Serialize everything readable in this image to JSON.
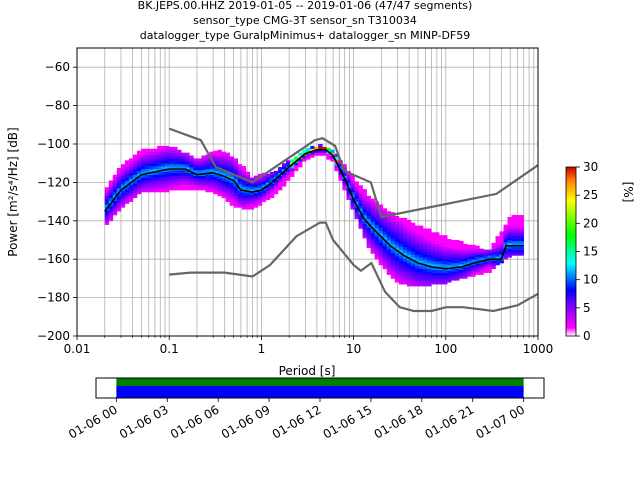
{
  "title_lines": [
    "BK.JEPS.00.HHZ   2019-01-05 -- 2019-01-06  (47/47 segments)",
    "sensor_type CMG-3T sensor_sn T310034",
    "datalogger_type GuralpMinimus+ datalogger_sn MINP-DF59"
  ],
  "chart_data": {
    "type": "heatmap",
    "xlabel": "Period [s]",
    "ylabel": "Power [m²/s⁴/Hz] [dB]",
    "xscale": "log",
    "xlim": [
      0.01,
      1000
    ],
    "ylim": [
      -200,
      -50
    ],
    "x_tick_labels": [
      "0.01",
      "0.1",
      "1",
      "10",
      "100",
      "1000"
    ],
    "x_tick_values": [
      0.01,
      0.1,
      1,
      10,
      100,
      1000
    ],
    "y_ticks": [
      -200,
      -180,
      -160,
      -140,
      -120,
      -100,
      -80,
      -60
    ],
    "grid": true,
    "colorbar": {
      "label": "[%]",
      "range": [
        0,
        30
      ],
      "ticks": [
        0,
        5,
        10,
        15,
        20,
        25,
        30
      ]
    },
    "noise_models": {
      "high": [
        [
          0.1,
          -92
        ],
        [
          0.22,
          -98
        ],
        [
          0.32,
          -112
        ],
        [
          0.8,
          -120
        ],
        [
          3.8,
          -98
        ],
        [
          4.6,
          -97
        ],
        [
          6.3,
          -101
        ],
        [
          7.9,
          -114
        ],
        [
          15.4,
          -120
        ],
        [
          20,
          -138
        ],
        [
          354,
          -126
        ],
        [
          1000,
          -111
        ]
      ],
      "low": [
        [
          0.1,
          -168
        ],
        [
          0.17,
          -167
        ],
        [
          0.4,
          -167
        ],
        [
          0.8,
          -169
        ],
        [
          1.24,
          -163
        ],
        [
          2.4,
          -148
        ],
        [
          4.3,
          -141
        ],
        [
          5.0,
          -141
        ],
        [
          6.0,
          -150
        ],
        [
          10,
          -163
        ],
        [
          12,
          -166
        ],
        [
          15.6,
          -162
        ],
        [
          21.9,
          -177
        ],
        [
          31.6,
          -185
        ],
        [
          45,
          -187
        ],
        [
          70,
          -187
        ],
        [
          101,
          -185
        ],
        [
          154,
          -185
        ],
        [
          328,
          -187
        ],
        [
          600,
          -184
        ],
        [
          1000,
          -178
        ]
      ]
    },
    "median_curve": [
      [
        0.02,
        -135
      ],
      [
        0.03,
        -124
      ],
      [
        0.05,
        -116
      ],
      [
        0.1,
        -113
      ],
      [
        0.15,
        -113
      ],
      [
        0.2,
        -116
      ],
      [
        0.3,
        -115
      ],
      [
        0.4,
        -117
      ],
      [
        0.5,
        -119
      ],
      [
        0.6,
        -124
      ],
      [
        0.8,
        -125
      ],
      [
        1.0,
        -124
      ],
      [
        1.3,
        -120
      ],
      [
        2.0,
        -112
      ],
      [
        3.0,
        -105
      ],
      [
        4.0,
        -103
      ],
      [
        5.0,
        -103
      ],
      [
        6.0,
        -106
      ],
      [
        8.0,
        -118
      ],
      [
        10,
        -129
      ],
      [
        13,
        -139
      ],
      [
        17,
        -145
      ],
      [
        25,
        -153
      ],
      [
        35,
        -158
      ],
      [
        50,
        -162
      ],
      [
        70,
        -164
      ],
      [
        100,
        -165
      ],
      [
        150,
        -164
      ],
      [
        200,
        -162
      ],
      [
        300,
        -160
      ],
      [
        400,
        -160
      ],
      [
        450,
        -153
      ],
      [
        700,
        -153
      ]
    ],
    "density_envelope": {
      "upper": [
        [
          0.02,
          -125
        ],
        [
          0.03,
          -112
        ],
        [
          0.05,
          -104
        ],
        [
          0.1,
          -101
        ],
        [
          0.2,
          -108
        ],
        [
          0.35,
          -104
        ],
        [
          0.5,
          -107
        ],
        [
          0.8,
          -118
        ],
        [
          1.5,
          -114
        ],
        [
          3,
          -103
        ],
        [
          4.5,
          -101
        ],
        [
          6,
          -104
        ],
        [
          10,
          -118
        ],
        [
          15,
          -128
        ],
        [
          20,
          -133
        ],
        [
          30,
          -138
        ],
        [
          50,
          -143
        ],
        [
          100,
          -149
        ],
        [
          200,
          -154
        ],
        [
          300,
          -156
        ],
        [
          500,
          -138
        ],
        [
          700,
          -138
        ]
      ],
      "lower": [
        [
          0.02,
          -143
        ],
        [
          0.03,
          -133
        ],
        [
          0.05,
          -125
        ],
        [
          0.1,
          -124
        ],
        [
          0.2,
          -123
        ],
        [
          0.35,
          -126
        ],
        [
          0.5,
          -132
        ],
        [
          0.8,
          -134
        ],
        [
          1.5,
          -125
        ],
        [
          3,
          -108
        ],
        [
          4.5,
          -105
        ],
        [
          6,
          -109
        ],
        [
          10,
          -135
        ],
        [
          15,
          -155
        ],
        [
          20,
          -163
        ],
        [
          30,
          -172
        ],
        [
          50,
          -174
        ],
        [
          100,
          -172
        ],
        [
          200,
          -168
        ],
        [
          300,
          -166
        ],
        [
          500,
          -158
        ],
        [
          700,
          -157
        ]
      ]
    },
    "timeline": {
      "tick_labels": [
        "01-06 00",
        "01-06 03",
        "01-06 06",
        "01-06 09",
        "01-06 12",
        "01-06 15",
        "01-06 18",
        "01-06 21",
        "01-07 00"
      ],
      "tick_hours": [
        0,
        3,
        6,
        9,
        12,
        15,
        18,
        21,
        24
      ],
      "range_hours": [
        -1.2,
        25.2
      ],
      "coverage_hours": [
        0,
        24
      ],
      "colors": [
        "#008000",
        "#0000ff"
      ]
    }
  }
}
